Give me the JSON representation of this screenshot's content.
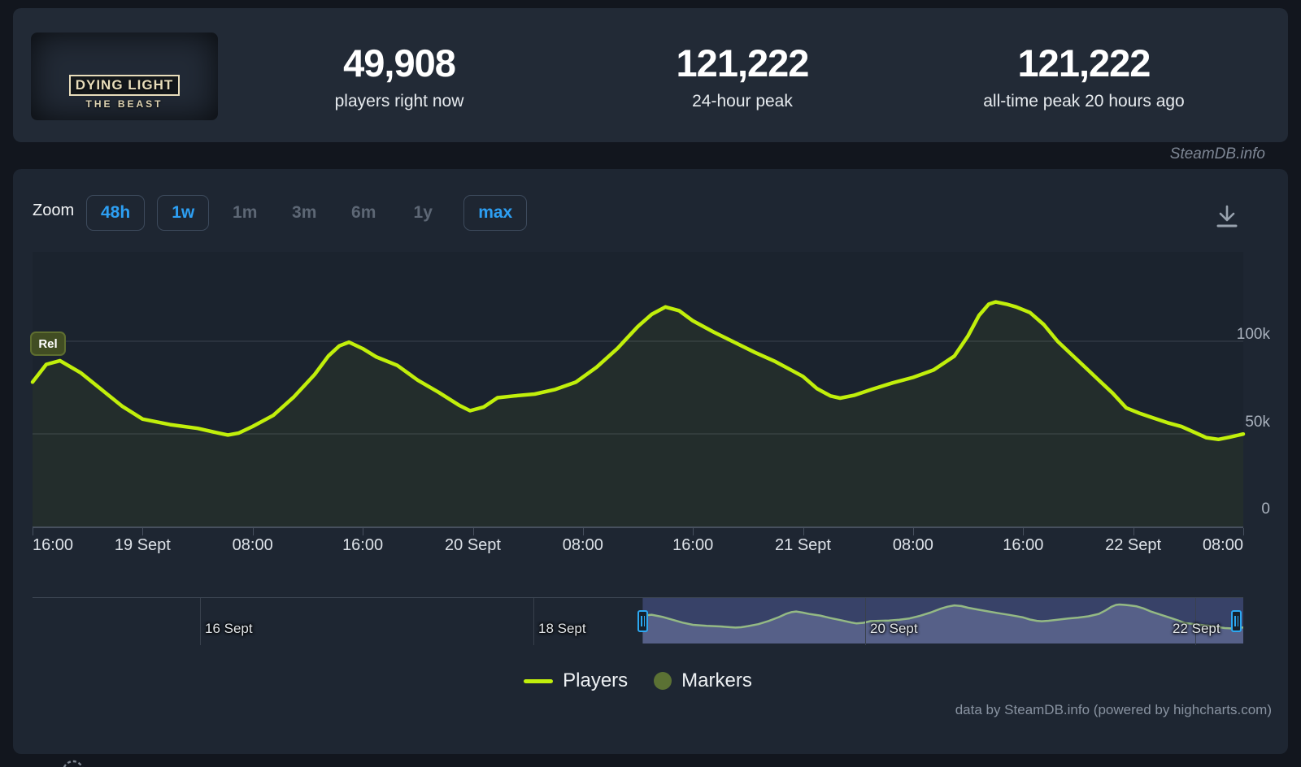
{
  "page": {
    "site_watermark": "SteamDB.info",
    "attribution": "data by SteamDB.info (powered by highcharts.com)"
  },
  "header": {
    "thumbnail": {
      "line1": "DYING LIGHT",
      "line2": "THE BEAST"
    },
    "stats": [
      {
        "value": "49,908",
        "label": "players right now"
      },
      {
        "value": "121,222",
        "label": "24-hour peak"
      },
      {
        "value": "121,222",
        "label": "all-time peak 20 hours ago"
      }
    ]
  },
  "toolbar": {
    "zoom_label": "Zoom",
    "buttons": [
      {
        "label": "48h",
        "state": "enabled"
      },
      {
        "label": "1w",
        "state": "enabled"
      },
      {
        "label": "1m",
        "state": "disabled"
      },
      {
        "label": "3m",
        "state": "disabled"
      },
      {
        "label": "6m",
        "state": "disabled"
      },
      {
        "label": "1y",
        "state": "disabled"
      },
      {
        "label": "max",
        "state": "enabled"
      }
    ],
    "download_icon": "download-icon"
  },
  "chart_data": {
    "type": "line",
    "title": "Dying Light: The Beast concurrent players",
    "x_unit": "hours since 18 Sept 16:00",
    "x_axis_ticks": [
      "16:00",
      "19 Sept",
      "08:00",
      "16:00",
      "20 Sept",
      "08:00",
      "16:00",
      "21 Sept",
      "08:00",
      "16:00",
      "22 Sept",
      "08:00"
    ],
    "y_axis_ticks": [
      "100k",
      "50k",
      "0"
    ],
    "y_gridline_values": [
      100000,
      50000,
      0
    ],
    "release_flag": "Rel",
    "line_color": "#c1ef0b",
    "series": [
      {
        "name": "Players",
        "color": "#c1ef0b",
        "points": [
          [
            0,
            78000
          ],
          [
            1,
            87500
          ],
          [
            2,
            89500
          ],
          [
            3.5,
            83000
          ],
          [
            5,
            74000
          ],
          [
            6.5,
            65000
          ],
          [
            8,
            58000
          ],
          [
            10,
            55000
          ],
          [
            12,
            53000
          ],
          [
            13.5,
            50500
          ],
          [
            14.2,
            49400
          ],
          [
            15,
            50500
          ],
          [
            16,
            54000
          ],
          [
            17.5,
            60000
          ],
          [
            19,
            70000
          ],
          [
            20.5,
            82000
          ],
          [
            21.5,
            92000
          ],
          [
            22.3,
            97500
          ],
          [
            23,
            99500
          ],
          [
            24,
            96000
          ],
          [
            25,
            91500
          ],
          [
            26.5,
            87000
          ],
          [
            28,
            79000
          ],
          [
            29.5,
            72500
          ],
          [
            31,
            65500
          ],
          [
            31.8,
            62500
          ],
          [
            32.8,
            64500
          ],
          [
            33.8,
            69500
          ],
          [
            35,
            70500
          ],
          [
            36.5,
            71500
          ],
          [
            38,
            74000
          ],
          [
            39.5,
            78000
          ],
          [
            41,
            86000
          ],
          [
            42.5,
            96000
          ],
          [
            44,
            108000
          ],
          [
            45,
            114500
          ],
          [
            46,
            118500
          ],
          [
            47,
            116500
          ],
          [
            48,
            111000
          ],
          [
            49.5,
            105000
          ],
          [
            51,
            99500
          ],
          [
            52.5,
            94000
          ],
          [
            54,
            89000
          ],
          [
            55,
            85000
          ],
          [
            56,
            81000
          ],
          [
            57,
            74500
          ],
          [
            58,
            70500
          ],
          [
            58.7,
            69300
          ],
          [
            59.7,
            70800
          ],
          [
            61,
            74000
          ],
          [
            62.5,
            77500
          ],
          [
            64,
            80500
          ],
          [
            65.5,
            84500
          ],
          [
            67,
            92000
          ],
          [
            68,
            103000
          ],
          [
            68.8,
            114000
          ],
          [
            69.5,
            120000
          ],
          [
            70,
            121222
          ],
          [
            70.8,
            120000
          ],
          [
            71.5,
            118500
          ],
          [
            72.5,
            115500
          ],
          [
            73.5,
            109000
          ],
          [
            74.5,
            100000
          ],
          [
            75.5,
            93000
          ],
          [
            76.5,
            86000
          ],
          [
            77.5,
            79000
          ],
          [
            78.5,
            72000
          ],
          [
            79.5,
            64000
          ],
          [
            80.5,
            61000
          ],
          [
            81.5,
            58500
          ],
          [
            82.5,
            56000
          ],
          [
            83.5,
            54000
          ],
          [
            84.4,
            51000
          ],
          [
            85.3,
            48000
          ],
          [
            86.2,
            47000
          ],
          [
            87,
            48200
          ],
          [
            88,
            49908
          ]
        ]
      }
    ],
    "legend": [
      {
        "label": "Players",
        "type": "line",
        "color": "#c1ef0b"
      },
      {
        "label": "Markers",
        "type": "circle",
        "color": "#5b7134"
      }
    ],
    "navigator": {
      "labels": [
        "16 Sept",
        "18 Sept",
        "20 Sept",
        "22 Sept"
      ],
      "range_hours": [
        -88,
        88
      ],
      "selected_range_start_hour": 0.7,
      "line_color": "#a8d75c",
      "mask_color": "rgba(110,125,215,0.33)",
      "pre_points": [
        [
          -88,
          300
        ],
        [
          -60,
          400
        ],
        [
          -40,
          500
        ],
        [
          -24,
          700
        ],
        [
          -12,
          900
        ],
        [
          -6,
          1200
        ],
        [
          -4,
          2000
        ],
        [
          -3,
          5000
        ],
        [
          -2,
          15000
        ],
        [
          -1.2,
          45000
        ],
        [
          -0.5,
          68000
        ]
      ]
    }
  }
}
